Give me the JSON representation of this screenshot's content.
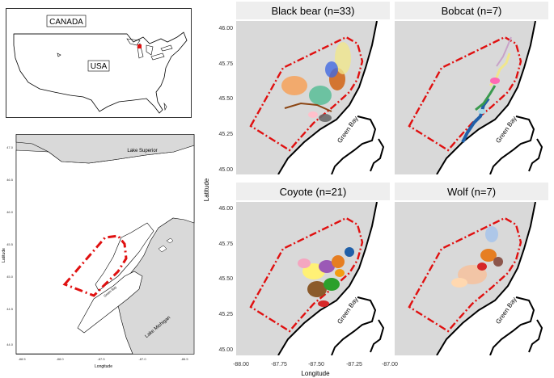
{
  "inset_usa": {
    "canada_label": "CANADA",
    "usa_label": "USA"
  },
  "regional_map": {
    "lake_superior": "Lake Superior",
    "lake_michigan": "Lake Michigan",
    "green_bay": "Green Bay",
    "ylabel": "Latitude",
    "xlabel": "Longitude",
    "y_ticks": [
      "47.0",
      "46.5",
      "46.0",
      "45.5",
      "45.0",
      "44.5",
      "44.0"
    ],
    "x_ticks": [
      "-88.5",
      "-88.0",
      "-87.5",
      "-87.0",
      "-86.5"
    ]
  },
  "facets": {
    "titles": [
      "Black bear (n=33)",
      "Bobcat (n=7)",
      "Coyote (n=21)",
      "Wolf (n=7)"
    ],
    "y_ticks": [
      "46.00",
      "45.75",
      "45.50",
      "45.25",
      "45.00"
    ],
    "x_ticks": [
      "-88.00",
      "-87.75",
      "-87.50",
      "-87.25",
      "-87.00"
    ],
    "ylabel": "Latitude",
    "xlabel": "Longitude",
    "green_bay_label": "Green Bay"
  },
  "colors": {
    "study_area_outline": "#e01010",
    "panel_background": "#d9d9d9",
    "strip_background": "#eeeeee",
    "state_marker": "#e01010"
  }
}
